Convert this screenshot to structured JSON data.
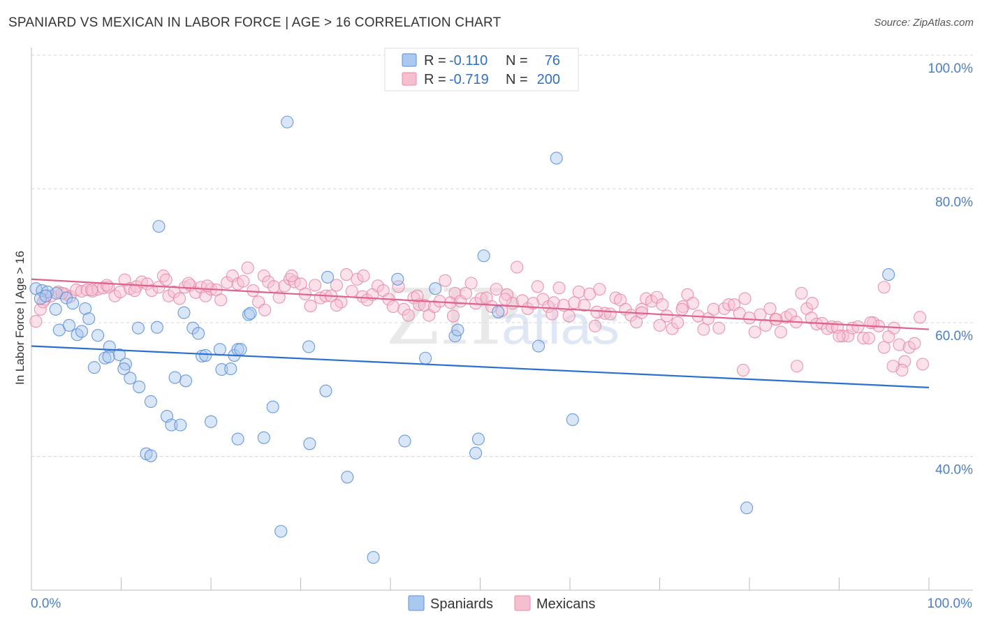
{
  "title": "SPANIARD VS MEXICAN IN LABOR FORCE | AGE > 16 CORRELATION CHART",
  "source": "Source: ZipAtlas.com",
  "watermark": {
    "zip": "ZIP",
    "atlas": "atlas"
  },
  "colors": {
    "spaniards_fill": "#aac8f0",
    "spaniards_stroke": "#5b8fd6",
    "spaniards_line": "#2a6fd0",
    "mexicans_fill": "#f6bfd0",
    "mexicans_stroke": "#e88aa8",
    "mexicans_line": "#e0618a",
    "tick_label": "#4a7fc8"
  },
  "legend": {
    "rows": [
      {
        "r_label": "R =",
        "r_value": "-0.110",
        "n_label": "N =",
        "n_value": "76"
      },
      {
        "r_label": "R =",
        "r_value": "-0.719",
        "n_label": "N =",
        "n_value": "200"
      }
    ]
  },
  "bottom_legend": {
    "items": [
      "Spaniards",
      "Mexicans"
    ]
  },
  "chart_data": {
    "type": "scatter",
    "title": "SPANIARD VS MEXICAN IN LABOR FORCE | AGE > 16 CORRELATION CHART",
    "xlabel": "",
    "ylabel": "In Labor Force | Age > 16",
    "xlim": [
      0,
      100
    ],
    "ylim": [
      20,
      100
    ],
    "x_tick_labels": [
      "0.0%",
      "100.0%"
    ],
    "y_ticks": [
      40,
      60,
      80,
      100
    ],
    "y_tick_labels": [
      "40.0%",
      "60.0%",
      "80.0%",
      "100.0%"
    ],
    "grid": true,
    "series": [
      {
        "name": "Spaniards",
        "r": -0.11,
        "n": 76,
        "trend": {
          "x": [
            0,
            100
          ],
          "y": [
            56.5,
            50.3
          ]
        },
        "points": [
          [
            0.5,
            65.1
          ],
          [
            1.2,
            64.8
          ],
          [
            1.8,
            64.6
          ],
          [
            2.8,
            64.4
          ],
          [
            3.9,
            63.7
          ],
          [
            2.7,
            62.0
          ],
          [
            4.6,
            62.9
          ],
          [
            6.0,
            62.1
          ],
          [
            6.4,
            60.6
          ],
          [
            3.1,
            58.9
          ],
          [
            4.2,
            59.6
          ],
          [
            5.1,
            58.2
          ],
          [
            5.6,
            58.7
          ],
          [
            7.4,
            58.1
          ],
          [
            8.7,
            56.4
          ],
          [
            9.8,
            55.2
          ],
          [
            8.2,
            54.7
          ],
          [
            8.6,
            54.9
          ],
          [
            10.5,
            53.8
          ],
          [
            7.0,
            53.3
          ],
          [
            10.3,
            53.1
          ],
          [
            11.0,
            51.7
          ],
          [
            12.0,
            50.4
          ],
          [
            11.9,
            59.2
          ],
          [
            14.0,
            59.3
          ],
          [
            13.3,
            48.2
          ],
          [
            14.2,
            74.4
          ],
          [
            15.1,
            46.0
          ],
          [
            15.6,
            44.7
          ],
          [
            16.6,
            44.7
          ],
          [
            12.8,
            40.4
          ],
          [
            13.3,
            40.1
          ],
          [
            17.0,
            61.5
          ],
          [
            17.2,
            51.3
          ],
          [
            16.0,
            51.8
          ],
          [
            18.0,
            59.2
          ],
          [
            18.6,
            58.4
          ],
          [
            19.0,
            55.0
          ],
          [
            19.4,
            55.1
          ],
          [
            21.0,
            56.0
          ],
          [
            20.0,
            45.2
          ],
          [
            21.2,
            53.0
          ],
          [
            22.2,
            53.1
          ],
          [
            22.6,
            55.1
          ],
          [
            23.0,
            56.0
          ],
          [
            23.3,
            56.0
          ],
          [
            23.0,
            42.6
          ],
          [
            24.2,
            61.2
          ],
          [
            24.4,
            61.4
          ],
          [
            25.9,
            42.8
          ],
          [
            26.9,
            47.4
          ],
          [
            27.8,
            28.8
          ],
          [
            28.5,
            90.0
          ],
          [
            31.0,
            41.9
          ],
          [
            30.9,
            56.4
          ],
          [
            32.8,
            49.8
          ],
          [
            33.0,
            66.8
          ],
          [
            35.2,
            36.9
          ],
          [
            38.1,
            24.9
          ],
          [
            40.8,
            66.5
          ],
          [
            41.6,
            42.3
          ],
          [
            43.9,
            54.7
          ],
          [
            45.0,
            65.1
          ],
          [
            47.2,
            58.0
          ],
          [
            47.5,
            58.9
          ],
          [
            49.5,
            40.5
          ],
          [
            49.8,
            42.6
          ],
          [
            50.4,
            70.0
          ],
          [
            52.0,
            61.6
          ],
          [
            56.5,
            56.5
          ],
          [
            58.5,
            84.6
          ],
          [
            60.3,
            45.5
          ],
          [
            79.7,
            32.3
          ],
          [
            95.5,
            67.2
          ],
          [
            1.0,
            63.6
          ],
          [
            1.6,
            64.0
          ]
        ]
      },
      {
        "name": "Mexicans",
        "r": -0.719,
        "n": 200,
        "trend": {
          "x": [
            0,
            100
          ],
          "y": [
            66.5,
            59.0
          ]
        },
        "points": [
          [
            0.5,
            60.2
          ],
          [
            1.0,
            62.0
          ],
          [
            1.5,
            63.5
          ],
          [
            2.2,
            64.0
          ],
          [
            3.0,
            64.6
          ],
          [
            3.7,
            64.3
          ],
          [
            4.3,
            63.9
          ],
          [
            5.0,
            64.9
          ],
          [
            5.6,
            64.7
          ],
          [
            6.2,
            64.9
          ],
          [
            6.8,
            64.7
          ],
          [
            7.4,
            65.0
          ],
          [
            8.0,
            65.2
          ],
          [
            8.6,
            65.3
          ],
          [
            9.3,
            64.0
          ],
          [
            9.9,
            64.6
          ],
          [
            10.4,
            66.4
          ],
          [
            11.0,
            65.1
          ],
          [
            11.7,
            65.4
          ],
          [
            12.3,
            66.1
          ],
          [
            12.9,
            65.8
          ],
          [
            13.4,
            64.8
          ],
          [
            14.2,
            65.3
          ],
          [
            14.7,
            67.0
          ],
          [
            15.3,
            64.0
          ],
          [
            15.9,
            64.6
          ],
          [
            16.5,
            63.6
          ],
          [
            17.1,
            65.3
          ],
          [
            17.7,
            65.6
          ],
          [
            18.3,
            64.5
          ],
          [
            18.9,
            65.3
          ],
          [
            19.4,
            64.0
          ],
          [
            20.0,
            65.0
          ],
          [
            20.6,
            64.9
          ],
          [
            21.1,
            63.4
          ],
          [
            21.8,
            66.0
          ],
          [
            22.4,
            67.0
          ],
          [
            23.0,
            65.8
          ],
          [
            23.6,
            66.2
          ],
          [
            24.1,
            68.2
          ],
          [
            24.7,
            64.8
          ],
          [
            25.3,
            63.1
          ],
          [
            25.9,
            67.0
          ],
          [
            26.4,
            66.1
          ],
          [
            27.0,
            65.4
          ],
          [
            27.6,
            63.8
          ],
          [
            28.2,
            65.5
          ],
          [
            28.8,
            66.5
          ],
          [
            29.3,
            66.1
          ],
          [
            30.0,
            65.8
          ],
          [
            30.5,
            64.3
          ],
          [
            31.1,
            62.5
          ],
          [
            31.6,
            65.6
          ],
          [
            32.2,
            63.7
          ],
          [
            32.8,
            64.0
          ],
          [
            33.4,
            64.0
          ],
          [
            34.0,
            65.6
          ],
          [
            34.5,
            63.1
          ],
          [
            35.1,
            67.2
          ],
          [
            35.7,
            64.7
          ],
          [
            36.3,
            66.5
          ],
          [
            36.9,
            63.9
          ],
          [
            37.4,
            63.4
          ],
          [
            38.0,
            64.2
          ],
          [
            38.6,
            65.5
          ],
          [
            39.2,
            64.8
          ],
          [
            39.8,
            63.5
          ],
          [
            40.3,
            62.4
          ],
          [
            40.9,
            65.4
          ],
          [
            41.5,
            62.0
          ],
          [
            42.0,
            61.1
          ],
          [
            42.6,
            63.7
          ],
          [
            43.2,
            62.7
          ],
          [
            43.8,
            62.6
          ],
          [
            44.3,
            61.1
          ],
          [
            44.9,
            62.4
          ],
          [
            45.5,
            63.2
          ],
          [
            46.1,
            66.3
          ],
          [
            46.7,
            63.0
          ],
          [
            47.2,
            64.4
          ],
          [
            47.8,
            63.2
          ],
          [
            48.4,
            64.4
          ],
          [
            49.0,
            65.9
          ],
          [
            49.5,
            62.9
          ],
          [
            50.1,
            63.6
          ],
          [
            50.7,
            63.7
          ],
          [
            51.3,
            62.4
          ],
          [
            51.8,
            65.0
          ],
          [
            52.4,
            61.8
          ],
          [
            53.0,
            64.2
          ],
          [
            53.6,
            62.9
          ],
          [
            54.1,
            68.3
          ],
          [
            54.7,
            63.3
          ],
          [
            55.3,
            62.1
          ],
          [
            55.9,
            62.9
          ],
          [
            56.4,
            65.4
          ],
          [
            57.0,
            63.5
          ],
          [
            57.6,
            62.4
          ],
          [
            58.2,
            63.0
          ],
          [
            58.8,
            65.2
          ],
          [
            59.3,
            62.6
          ],
          [
            59.9,
            61.0
          ],
          [
            60.5,
            63.0
          ],
          [
            61.0,
            64.6
          ],
          [
            61.6,
            62.6
          ],
          [
            62.2,
            64.3
          ],
          [
            62.8,
            59.5
          ],
          [
            63.3,
            65.0
          ],
          [
            63.9,
            61.4
          ],
          [
            64.5,
            61.3
          ],
          [
            65.1,
            63.7
          ],
          [
            65.6,
            63.4
          ],
          [
            66.2,
            62.0
          ],
          [
            66.8,
            61.1
          ],
          [
            67.4,
            60.1
          ],
          [
            68.0,
            62.0
          ],
          [
            68.5,
            63.6
          ],
          [
            69.1,
            63.2
          ],
          [
            69.7,
            63.8
          ],
          [
            70.3,
            62.7
          ],
          [
            70.8,
            61.0
          ],
          [
            71.4,
            59.1
          ],
          [
            72.0,
            60.0
          ],
          [
            72.6,
            62.4
          ],
          [
            73.1,
            64.2
          ],
          [
            73.7,
            62.9
          ],
          [
            74.3,
            61.0
          ],
          [
            74.9,
            59.0
          ],
          [
            75.4,
            60.6
          ],
          [
            76.0,
            62.0
          ],
          [
            76.6,
            59.2
          ],
          [
            77.2,
            62.1
          ],
          [
            77.7,
            62.7
          ],
          [
            78.3,
            62.7
          ],
          [
            78.9,
            61.4
          ],
          [
            79.5,
            63.6
          ],
          [
            80.0,
            60.7
          ],
          [
            80.6,
            58.6
          ],
          [
            81.2,
            61.2
          ],
          [
            81.8,
            59.6
          ],
          [
            82.3,
            62.1
          ],
          [
            82.9,
            60.5
          ],
          [
            83.5,
            58.6
          ],
          [
            84.1,
            60.8
          ],
          [
            84.6,
            61.2
          ],
          [
            85.2,
            60.1
          ],
          [
            85.8,
            64.4
          ],
          [
            86.4,
            62.1
          ],
          [
            86.9,
            60.7
          ],
          [
            87.5,
            59.8
          ],
          [
            88.1,
            59.9
          ],
          [
            88.7,
            59.1
          ],
          [
            89.2,
            59.4
          ],
          [
            89.8,
            59.3
          ],
          [
            90.4,
            58.0
          ],
          [
            91.0,
            58.0
          ],
          [
            91.5,
            59.2
          ],
          [
            92.1,
            59.4
          ],
          [
            92.7,
            57.7
          ],
          [
            93.3,
            57.7
          ],
          [
            93.8,
            60.0
          ],
          [
            94.4,
            59.5
          ],
          [
            95.0,
            56.3
          ],
          [
            95.5,
            57.9
          ],
          [
            96.1,
            59.2
          ],
          [
            96.7,
            56.7
          ],
          [
            97.3,
            54.2
          ],
          [
            97.8,
            56.3
          ],
          [
            98.4,
            56.9
          ],
          [
            99.0,
            60.8
          ],
          [
            99.3,
            53.8
          ],
          [
            95.0,
            65.3
          ],
          [
            85.3,
            53.5
          ],
          [
            79.3,
            52.9
          ],
          [
            97.0,
            52.9
          ],
          [
            96.0,
            53.5
          ],
          [
            93.5,
            60.0
          ],
          [
            90.0,
            58.0
          ],
          [
            83.0,
            60.5
          ],
          [
            72.5,
            62.0
          ],
          [
            68.0,
            61.5
          ],
          [
            63.0,
            61.6
          ],
          [
            58.0,
            61.3
          ],
          [
            52.8,
            63.5
          ],
          [
            47.0,
            61.0
          ],
          [
            43.0,
            64.0
          ],
          [
            37.0,
            67.0
          ],
          [
            29.0,
            67.0
          ],
          [
            19.6,
            65.5
          ],
          [
            15.0,
            66.4
          ],
          [
            11.5,
            64.8
          ],
          [
            8.4,
            65.6
          ],
          [
            6.7,
            64.9
          ],
          [
            3.4,
            64.4
          ],
          [
            1.3,
            63.1
          ],
          [
            17.5,
            65.9
          ],
          [
            26.0,
            61.9
          ],
          [
            34.0,
            62.6
          ],
          [
            70.0,
            59.6
          ],
          [
            87.0,
            62.9
          ]
        ]
      }
    ]
  }
}
